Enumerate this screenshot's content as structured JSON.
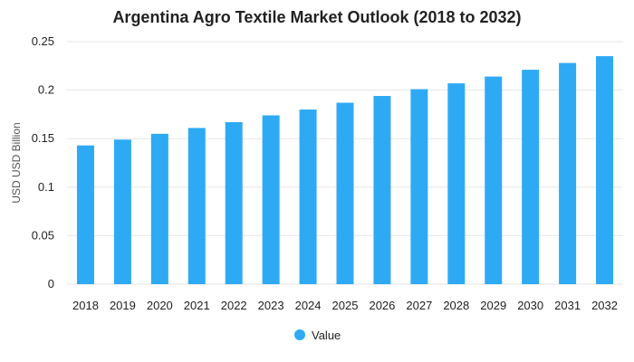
{
  "chart_data": {
    "type": "bar",
    "title": "Argentina Agro Textile Market Outlook (2018 to 2032)",
    "xlabel": "",
    "ylabel": "USD USD Billion",
    "ylim": [
      0,
      0.25
    ],
    "yticks": [
      "0",
      "0.05",
      "0.1",
      "0.15",
      "0.2",
      "0.25"
    ],
    "categories": [
      "2018",
      "2019",
      "2020",
      "2021",
      "2022",
      "2023",
      "2024",
      "2025",
      "2026",
      "2027",
      "2028",
      "2029",
      "2030",
      "2031",
      "2032"
    ],
    "series": [
      {
        "name": "Value",
        "color": "#2eaaf5",
        "values": [
          0.143,
          0.149,
          0.155,
          0.161,
          0.167,
          0.174,
          0.18,
          0.187,
          0.194,
          0.201,
          0.207,
          0.214,
          0.221,
          0.228,
          0.235
        ]
      }
    ],
    "grid": true,
    "legend_position": "bottom-center"
  }
}
